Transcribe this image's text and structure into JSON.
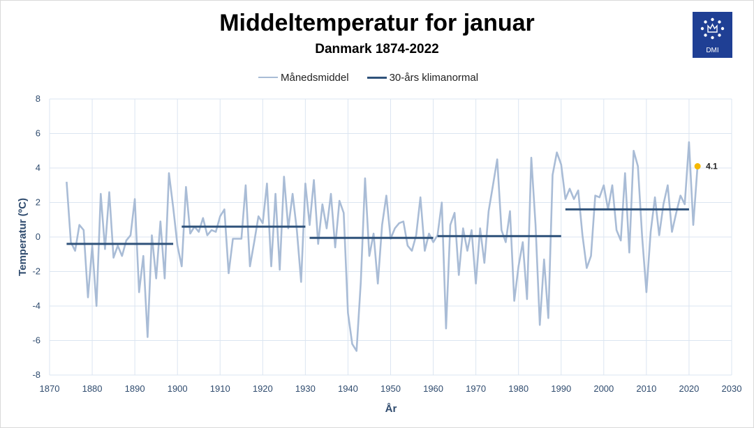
{
  "chart_data": {
    "type": "line",
    "title": "Middeltemperatur for januar",
    "subtitle": "Danmark 1874-2022",
    "xlabel": "År",
    "ylabel": "Temperatur (ºC)",
    "xlim": [
      1870,
      2030
    ],
    "ylim": [
      -8,
      8
    ],
    "x_ticks": [
      1870,
      1880,
      1890,
      1900,
      1910,
      1920,
      1930,
      1940,
      1950,
      1960,
      1970,
      1980,
      1990,
      2000,
      2010,
      2020,
      2030
    ],
    "y_ticks": [
      -8,
      -6,
      -4,
      -2,
      0,
      2,
      4,
      6,
      8
    ],
    "grid": true,
    "legend_position": "top",
    "legend": [
      "Månedsmiddel",
      "30-års klimanormal"
    ],
    "series": [
      {
        "name": "Månedsmiddel",
        "color": "#a9bcd6",
        "x_start": 1874,
        "values": [
          3.2,
          -0.3,
          -0.8,
          0.7,
          0.4,
          -3.5,
          -0.5,
          -4.0,
          2.5,
          -0.7,
          2.6,
          -1.2,
          -0.5,
          -1.1,
          -0.2,
          0.1,
          2.2,
          -3.2,
          -1.1,
          -5.8,
          0.1,
          -2.4,
          0.9,
          -2.4,
          3.7,
          1.7,
          -0.5,
          -1.7,
          2.9,
          0.2,
          0.6,
          0.3,
          1.1,
          0.1,
          0.4,
          0.3,
          1.2,
          1.6,
          -2.1,
          -0.1,
          -0.1,
          -0.1,
          3.0,
          -1.7,
          -0.3,
          1.2,
          0.8,
          3.1,
          -1.7,
          2.5,
          -1.9,
          3.5,
          0.5,
          2.5,
          0.4,
          -2.6,
          3.1,
          0.7,
          3.3,
          -0.4,
          1.9,
          0.5,
          2.5,
          -0.6,
          2.1,
          1.4,
          -4.4,
          -6.2,
          -6.6,
          -2.6,
          3.4,
          -1.1,
          0.2,
          -2.7,
          0.7,
          2.4,
          -0.1,
          0.5,
          0.8,
          0.9,
          -0.5,
          -0.8,
          0.1,
          2.3,
          -0.8,
          0.2,
          -0.3,
          0.1,
          2.0,
          -5.3,
          0.7,
          1.4,
          -2.2,
          0.5,
          -0.8,
          0.4,
          -2.7,
          0.5,
          -1.5,
          1.5,
          3.0,
          4.5,
          0.4,
          -0.3,
          1.5,
          -3.7,
          -1.7,
          -0.3,
          -3.6,
          4.6,
          0.7,
          -5.1,
          -1.3,
          -4.7,
          3.6,
          4.9,
          4.2,
          2.2,
          2.8,
          2.2,
          2.7,
          0.1,
          -1.8,
          -1.1,
          2.4,
          2.3,
          3.0,
          1.6,
          3.0,
          0.4,
          -0.2,
          3.7,
          -0.9,
          5.0,
          4.1,
          0.0,
          -3.2,
          0.3,
          2.3,
          0.1,
          1.9,
          3.0,
          0.3,
          1.4,
          2.4,
          1.9,
          5.5,
          0.7,
          4.1
        ]
      },
      {
        "name": "30-års klimanormal",
        "color": "#2f527a",
        "segments": [
          {
            "from": 1874,
            "to": 1899,
            "value": -0.4
          },
          {
            "from": 1901,
            "to": 1930,
            "value": 0.6
          },
          {
            "from": 1931,
            "to": 1960,
            "value": -0.05
          },
          {
            "from": 1961,
            "to": 1990,
            "value": 0.05
          },
          {
            "from": 1991,
            "to": 2020,
            "value": 1.6
          }
        ]
      }
    ],
    "annotation": {
      "x": 2022,
      "value": 4.1,
      "label": "4.1",
      "color": "#f5b800"
    }
  },
  "logo": {
    "text": "DMI",
    "background": "#1f3f94"
  }
}
